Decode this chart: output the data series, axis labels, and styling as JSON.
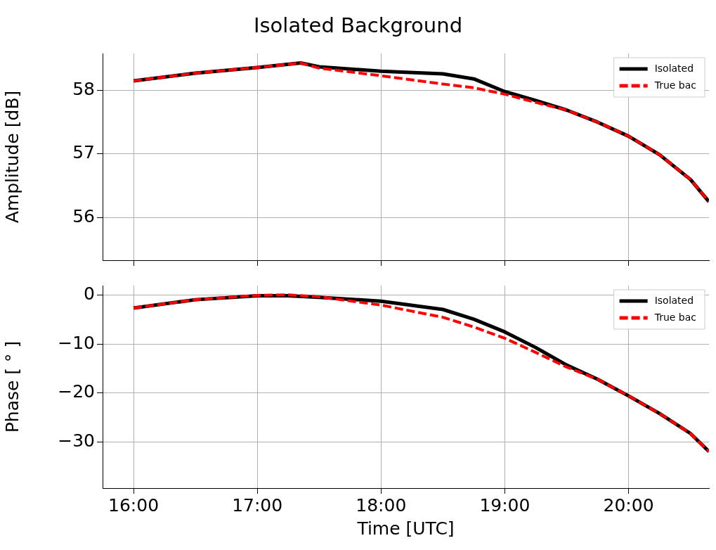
{
  "chart_data": [
    {
      "type": "line",
      "title": "Isolated Background",
      "ylabel": "Amplitude [dB]",
      "xlim": [
        15.75,
        20.65
      ],
      "ylim": [
        55.33,
        58.58
      ],
      "xticks": [
        16,
        17,
        18,
        19,
        20
      ],
      "yticks": [
        56,
        57,
        58
      ],
      "tick_labels": "y",
      "grid": true,
      "legend": "top right",
      "series": [
        {
          "name": "Isolated",
          "color": "#000000",
          "line_style": "solid",
          "x": [
            16,
            16.5,
            17,
            17.35,
            17.5,
            18,
            18.5,
            18.75,
            19,
            19.25,
            19.5,
            19.75,
            20,
            20.25,
            20.5,
            20.65
          ],
          "values": [
            58.15,
            58.27,
            58.36,
            58.43,
            58.37,
            58.3,
            58.26,
            58.18,
            57.98,
            57.84,
            57.69,
            57.5,
            57.28,
            56.99,
            56.6,
            56.25
          ]
        },
        {
          "name": "True bac",
          "color": "#ff0000",
          "line_style": "dashed",
          "x": [
            16,
            16.5,
            17,
            17.35,
            17.5,
            18,
            18.5,
            18.75,
            19,
            19.25,
            19.5,
            19.75,
            20,
            20.25,
            20.5,
            20.65
          ],
          "values": [
            58.15,
            58.27,
            58.36,
            58.43,
            58.35,
            58.23,
            58.1,
            58.04,
            57.94,
            57.81,
            57.69,
            57.5,
            57.28,
            56.99,
            56.6,
            56.25
          ]
        }
      ]
    },
    {
      "type": "line",
      "xlabel": "Time [UTC]",
      "ylabel": "Phase [ ° ]",
      "xlim": [
        15.75,
        20.65
      ],
      "ylim": [
        -39.5,
        2
      ],
      "xticks": [
        {
          "value": 16,
          "label": "16:00"
        },
        {
          "value": 17,
          "label": "17:00"
        },
        {
          "value": 18,
          "label": "18:00"
        },
        {
          "value": 19,
          "label": "19:00"
        },
        {
          "value": 20,
          "label": "20:00"
        }
      ],
      "yticks": [
        {
          "value": 0,
          "label": "0"
        },
        {
          "value": -10,
          "label": "−10"
        },
        {
          "value": -20,
          "label": "−20"
        },
        {
          "value": -30,
          "label": "−30"
        }
      ],
      "grid": true,
      "legend": "top right",
      "series": [
        {
          "name": "Isolated",
          "color": "#000000",
          "line_style": "solid",
          "x": [
            16,
            16.5,
            17,
            17.25,
            17.5,
            18,
            18.5,
            18.75,
            19,
            19.25,
            19.5,
            19.75,
            20,
            20.25,
            20.5,
            20.65
          ],
          "values": [
            -2.6,
            -0.9,
            -0.1,
            -0.1,
            -0.4,
            -1.2,
            -2.9,
            -4.9,
            -7.5,
            -10.7,
            -14.3,
            -17.2,
            -20.6,
            -24.2,
            -28.3,
            -32
          ]
        },
        {
          "name": "True bac",
          "color": "#ff0000",
          "line_style": "dashed",
          "x": [
            16,
            16.5,
            17,
            17.25,
            17.5,
            18,
            18.5,
            18.75,
            19,
            19.25,
            19.5,
            19.75,
            20,
            20.25,
            20.5,
            20.65
          ],
          "values": [
            -2.6,
            -0.9,
            0,
            0.1,
            -0.3,
            -2.0,
            -4.5,
            -6.5,
            -8.8,
            -11.7,
            -14.7,
            -17.2,
            -20.6,
            -24.2,
            -28.3,
            -32
          ]
        }
      ]
    }
  ]
}
